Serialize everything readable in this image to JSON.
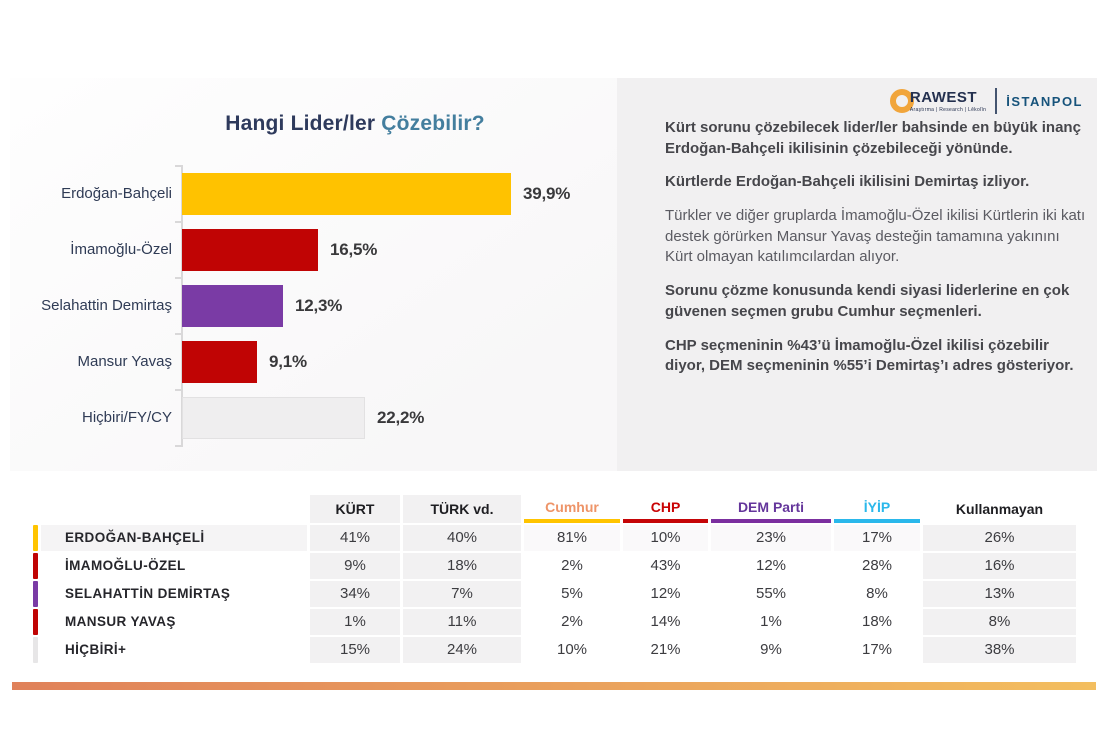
{
  "logo": {
    "rawest_text": "RAWEST",
    "rawest_tagline": "Araştırma | Research | Lêkolîn",
    "istanpol_text": "İSTANPOL"
  },
  "chart_data": [
    {
      "type": "bar",
      "orientation": "horizontal",
      "title": "Hangi Lider/ler Çözebilir?",
      "title_primary": "Hangi Lider/ler",
      "title_accent": "Çözebilir?",
      "categories": [
        "Erdoğan-Bahçeli",
        "İmamoğlu-Özel",
        "Selahattin Demirtaş",
        "Mansur Yavaş",
        "Hiçbiri/FY/CY"
      ],
      "values": [
        39.9,
        16.5,
        12.3,
        9.1,
        22.2
      ],
      "labels": [
        "39,9%",
        "16,5%",
        "12,3%",
        "9,1%",
        "22,2%"
      ],
      "colors": [
        "#FFC200",
        "#C00404",
        "#7A3BA5",
        "#C00404",
        "#EFEEEF"
      ],
      "xlim": [
        0,
        45
      ],
      "grid": false,
      "value_label_position": "end"
    },
    {
      "type": "table",
      "columns": [
        {
          "label": "KÜRT",
          "style": "gray-all"
        },
        {
          "label": "TÜRK vd.",
          "style": "gray-all"
        },
        {
          "label": "Cumhur",
          "style": "party",
          "text_color": "#EE9468",
          "accent_color": "#FFC400"
        },
        {
          "label": "CHP",
          "style": "party",
          "text_color": "#C90304",
          "accent_color": "#C50507"
        },
        {
          "label": "DEM Parti",
          "style": "party",
          "text_color": "#64359B",
          "accent_color": "#7B2F9F"
        },
        {
          "label": "İYİP",
          "style": "party",
          "text_color": "#2AB8EB",
          "accent_color": "#2AB8EB"
        },
        {
          "label": "Kullanmayan",
          "style": "gray-body"
        }
      ],
      "rows": [
        {
          "label": "ERDOĞAN-BAHÇELİ",
          "accent_color": "#FFC400",
          "values": [
            "41%",
            "40%",
            "81%",
            "10%",
            "23%",
            "17%",
            "26%"
          ]
        },
        {
          "label": "İMAMOĞLU-ÖZEL",
          "accent_color": "#C00404",
          "values": [
            "9%",
            "18%",
            "2%",
            "43%",
            "12%",
            "28%",
            "16%"
          ]
        },
        {
          "label": "SELAHATTİN DEMİRTAŞ",
          "accent_color": "#7A3BA5",
          "values": [
            "34%",
            "7%",
            "5%",
            "12%",
            "55%",
            "8%",
            "13%"
          ]
        },
        {
          "label": "MANSUR YAVAŞ",
          "accent_color": "#C00404",
          "values": [
            "1%",
            "11%",
            "2%",
            "14%",
            "1%",
            "18%",
            "8%"
          ]
        },
        {
          "label": "HİÇBİRİ+",
          "accent_color": "#E7E6E7",
          "values": [
            "15%",
            "24%",
            "10%",
            "21%",
            "9%",
            "17%",
            "38%"
          ]
        }
      ]
    }
  ],
  "insights": [
    {
      "text": "Kürt sorunu çözebilecek lider/ler bahsinde en büyük inanç Erdoğan-Bahçeli ikilisinin çözebileceği yönünde.",
      "bold": true
    },
    {
      "text": "Kürtlerde Erdoğan-Bahçeli ikilisini Demirtaş izliyor.",
      "bold": true
    },
    {
      "text": "Türkler ve diğer gruplarda İmamoğlu-Özel ikilisi Kürtlerin iki katı destek görürken Mansur Yavaş desteğin tamamına yakınını Kürt olmayan katılımcılardan alıyor.",
      "bold": false
    },
    {
      "text": "Sorunu çözme konusunda kendi siyasi liderlerine en çok güvenen seçmen grubu Cumhur seçmenleri.",
      "bold": true
    },
    {
      "text": "CHP seçmeninin %43’ü İmamoğlu-Özel ikilisi çözebilir diyor, DEM seçmeninin %55’i Demirtaş’ı adres gösteriyor.",
      "bold": true
    }
  ],
  "footer": {
    "gradient_from": "#E0815A",
    "gradient_to": "#F3BE5F"
  }
}
